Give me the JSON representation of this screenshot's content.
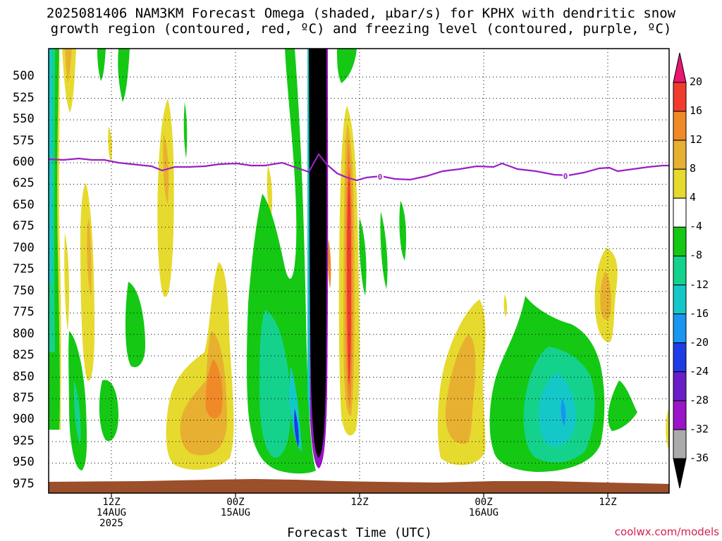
{
  "title_line1": "2025081406 NAM3KM Forecast Omega (shaded, μbar/s) for KPHX with dendritic snow",
  "title_line2": "growth region (contoured, red, ºC) and freezing level (contoured, purple, ºC)",
  "credit": "coolwx.com/models",
  "chart_data": {
    "type": "heatmap",
    "title": "2025081406 NAM3KM Forecast Omega (shaded, μbar/s) for KPHX with dendritic snow growth region (contoured, red, ºC) and freezing level (contoured, purple, ºC)",
    "xlabel": "Forecast Time (UTC)",
    "ylabel": "",
    "x_ticks": [
      {
        "label": "12Z",
        "sub": [
          "14AUG",
          "2025"
        ]
      },
      {
        "label": "00Z",
        "sub": [
          "15AUG"
        ]
      },
      {
        "label": "12Z",
        "sub": []
      },
      {
        "label": "00Z",
        "sub": [
          "16AUG"
        ]
      },
      {
        "label": "12Z",
        "sub": []
      }
    ],
    "y_ticks": [
      500,
      525,
      550,
      575,
      600,
      625,
      650,
      675,
      700,
      725,
      750,
      775,
      800,
      825,
      850,
      875,
      900,
      925,
      950,
      975
    ],
    "ylim": [
      467,
      985
    ],
    "y_inverted": true,
    "grid": true,
    "colorbar": {
      "unit": "μbar/s",
      "labels": [
        "20",
        "16",
        "12",
        "8",
        "4",
        "-4",
        "-8",
        "-12",
        "-16",
        "-20",
        "-24",
        "-28",
        "-32",
        "-36"
      ],
      "colors": [
        "#e8176f",
        "#f03c2e",
        "#f08a28",
        "#e8b030",
        "#e6da2e",
        "#ffffff",
        "#14c814",
        "#14d28c",
        "#14c8c8",
        "#1896f0",
        "#1e3ce6",
        "#6a1ec8",
        "#9a14c8",
        "#aaaaaa",
        "#000000"
      ]
    },
    "freezing_level": {
      "label": "0",
      "color": "#9b1fc4",
      "approx_pressure_hpa": 590
    },
    "terrain_color": "#9b4f2a"
  }
}
